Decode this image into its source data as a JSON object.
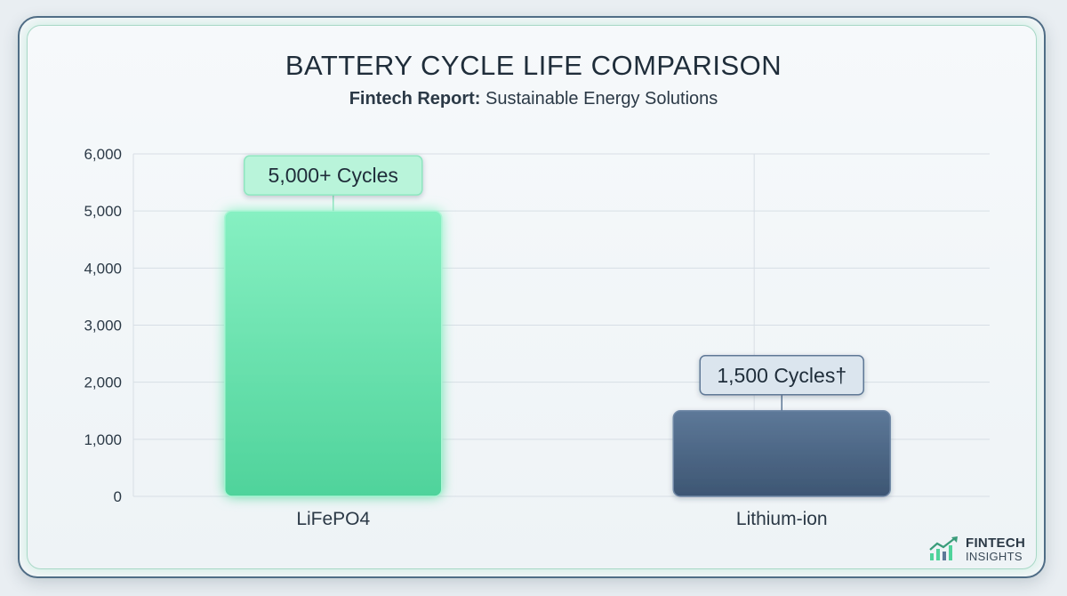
{
  "header": {
    "title": "BATTERY CYCLE LIFE COMPARISON",
    "subtitle_bold": "Fintech Report:",
    "subtitle_rest": " Sustainable Energy Solutions"
  },
  "brand": {
    "line1": "FINTECH",
    "line2": "INSIGHTS",
    "icon": "growth-chart-icon"
  },
  "colors": {
    "lifepo4": "#6fe8b4",
    "lithium_ion": "#4a6584",
    "grid": "#d7dee5",
    "axis_text": "#2b3946"
  },
  "chart_data": {
    "type": "bar",
    "categories": [
      "LiFePO4",
      "Lithium-ion"
    ],
    "values": [
      5000,
      1500
    ],
    "data_labels": [
      "5,000+ Cycles",
      "1,500 Cycles†"
    ],
    "title": "BATTERY CYCLE LIFE COMPARISON",
    "subtitle": "Fintech Report: Sustainable Energy Solutions",
    "xlabel": "",
    "ylabel": "",
    "ylim": [
      0,
      6000
    ],
    "yticks": [
      0,
      1000,
      2000,
      3000,
      4000,
      5000,
      6000
    ],
    "ytick_labels": [
      "0",
      "1,000",
      "2,000",
      "3,000",
      "4,000",
      "5,000",
      "6,000"
    ],
    "grid": true,
    "legend": "none"
  }
}
